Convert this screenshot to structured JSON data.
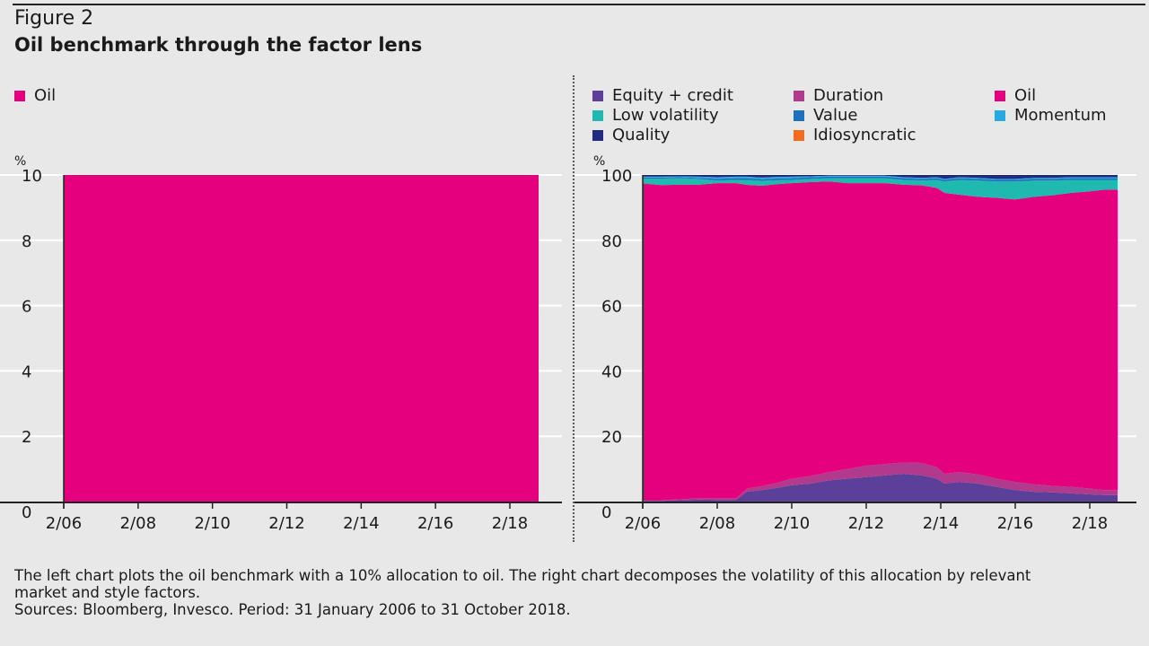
{
  "header": {
    "figure_label": "Figure 2",
    "title": "Oil benchmark through the factor lens"
  },
  "colors": {
    "equity_credit": "#5b3f98",
    "duration": "#b23a8c",
    "oil": "#e5007e",
    "low_volatility": "#1fb9b0",
    "value": "#1f6fbf",
    "momentum": "#27a9e1",
    "quality": "#1f2a80",
    "idiosyncratic": "#f26b21"
  },
  "chart_data": [
    {
      "type": "area",
      "y_unit": "%",
      "ylim": [
        0,
        10
      ],
      "yticks": [
        "0",
        "2",
        "4",
        "6",
        "8",
        "10"
      ],
      "xticks": [
        "2/06",
        "2/08",
        "2/10",
        "2/12",
        "2/14",
        "2/16",
        "2/18"
      ],
      "x_range": [
        "2006-02",
        "2018-10"
      ],
      "legend": [
        {
          "name": "Oil",
          "color": "#e5007e"
        }
      ],
      "series": [
        {
          "name": "Oil",
          "color": "#e5007e",
          "values": [
            [
              2006.0,
              10
            ],
            [
              2018.75,
              10
            ]
          ]
        }
      ]
    },
    {
      "type": "area",
      "stacked": true,
      "y_unit": "%",
      "ylim": [
        0,
        100
      ],
      "yticks": [
        "0",
        "20",
        "40",
        "60",
        "80",
        "100"
      ],
      "xticks": [
        "2/06",
        "2/08",
        "2/10",
        "2/12",
        "2/14",
        "2/16",
        "2/18"
      ],
      "x_range": [
        "2006-02",
        "2018-10"
      ],
      "x": [
        2006.0,
        2006.5,
        2007.0,
        2007.5,
        2008.0,
        2008.5,
        2008.8,
        2009.2,
        2009.6,
        2010.0,
        2010.5,
        2011.0,
        2011.5,
        2012.0,
        2012.5,
        2013.0,
        2013.5,
        2013.9,
        2014.1,
        2014.5,
        2015.0,
        2015.5,
        2016.0,
        2016.5,
        2017.0,
        2017.5,
        2018.0,
        2018.4,
        2018.75
      ],
      "legend": [
        {
          "name": "Equity + credit",
          "color": "#5b3f98"
        },
        {
          "name": "Duration",
          "color": "#b23a8c"
        },
        {
          "name": "Oil",
          "color": "#e5007e"
        },
        {
          "name": "Low volatility",
          "color": "#1fb9b0"
        },
        {
          "name": "Value",
          "color": "#1f6fbf"
        },
        {
          "name": "Momentum",
          "color": "#27a9e1"
        },
        {
          "name": "Quality",
          "color": "#1f2a80"
        },
        {
          "name": "Idiosyncratic",
          "color": "#f26b21"
        }
      ],
      "series": [
        {
          "name": "Equity + credit",
          "color": "#5b3f98",
          "values": [
            0.2,
            0.2,
            0.4,
            0.6,
            0.5,
            0.5,
            3.0,
            3.5,
            4.2,
            5.0,
            5.5,
            6.5,
            7.0,
            7.5,
            8.0,
            8.5,
            8.0,
            7.0,
            5.5,
            6.0,
            5.5,
            4.5,
            3.5,
            3.0,
            2.8,
            2.5,
            2.2,
            2.0,
            2.0
          ]
        },
        {
          "name": "Duration",
          "color": "#b23a8c",
          "values": [
            0.2,
            0.2,
            0.3,
            0.4,
            0.5,
            0.5,
            1.0,
            1.2,
            1.5,
            2.0,
            2.3,
            2.5,
            3.0,
            3.5,
            3.5,
            3.5,
            3.8,
            3.5,
            3.0,
            3.0,
            2.8,
            2.5,
            2.5,
            2.3,
            2.0,
            2.0,
            1.8,
            1.5,
            1.5
          ]
        },
        {
          "name": "Oil",
          "color": "#e5007e",
          "values": [
            97.0,
            96.5,
            96.3,
            96.0,
            96.5,
            96.5,
            92.5,
            92.0,
            91.5,
            90.5,
            90.0,
            89.0,
            87.5,
            86.5,
            86.0,
            85.0,
            85.0,
            85.5,
            86.0,
            84.5,
            85.0,
            86.0,
            86.5,
            88.0,
            89.0,
            90.0,
            91.0,
            92.0,
            92.0
          ]
        },
        {
          "name": "Low volatility",
          "color": "#1fb9b0",
          "values": [
            1.5,
            2.0,
            2.0,
            1.8,
            0.8,
            1.0,
            1.5,
            1.5,
            1.2,
            1.0,
            1.0,
            1.0,
            1.5,
            1.5,
            1.5,
            1.5,
            1.5,
            2.5,
            3.5,
            4.5,
            5.0,
            5.0,
            5.5,
            5.0,
            4.5,
            4.0,
            3.5,
            3.0,
            3.0
          ]
        },
        {
          "name": "Value",
          "color": "#1f6fbf",
          "values": [
            0.3,
            0.3,
            0.3,
            0.3,
            0.5,
            0.5,
            0.5,
            0.5,
            0.5,
            0.5,
            0.5,
            0.5,
            0.5,
            0.5,
            0.5,
            0.5,
            0.5,
            0.5,
            0.5,
            0.5,
            0.5,
            0.5,
            0.5,
            0.5,
            0.5,
            0.5,
            0.5,
            0.5,
            0.5
          ]
        },
        {
          "name": "Momentum",
          "color": "#27a9e1",
          "values": [
            0.3,
            0.3,
            0.3,
            0.4,
            0.5,
            0.5,
            0.5,
            0.5,
            0.5,
            0.5,
            0.3,
            0.3,
            0.3,
            0.3,
            0.3,
            0.3,
            0.3,
            0.3,
            0.3,
            0.3,
            0.3,
            0.3,
            0.3,
            0.3,
            0.3,
            0.3,
            0.3,
            0.3,
            0.3
          ]
        },
        {
          "name": "Quality",
          "color": "#1f2a80",
          "values": [
            0.5,
            0.5,
            0.4,
            0.5,
            0.7,
            0.5,
            0.5,
            0.8,
            0.6,
            0.5,
            0.4,
            0.2,
            0.2,
            0.2,
            0.2,
            0.7,
            0.9,
            0.7,
            1.2,
            0.7,
            0.9,
            1.2,
            1.2,
            0.9,
            0.9,
            0.7,
            0.7,
            0.7,
            0.7
          ]
        },
        {
          "name": "Idiosyncratic",
          "color": "#f26b21",
          "values": [
            0,
            0,
            0,
            0,
            0,
            0,
            0,
            0,
            0,
            0,
            0,
            0,
            0,
            0,
            0,
            0,
            0,
            0,
            0,
            0,
            0,
            0,
            0,
            0,
            0,
            0,
            0,
            0,
            0
          ]
        }
      ]
    }
  ],
  "footnote": {
    "line1": "The left chart plots the oil benchmark with a 10% allocation to oil. The right chart decomposes the volatility of this allocation by relevant",
    "line2": "market and style factors.",
    "line3": "Sources: Bloomberg, Invesco. Period: 31 January 2006 to 31 October 2018."
  }
}
